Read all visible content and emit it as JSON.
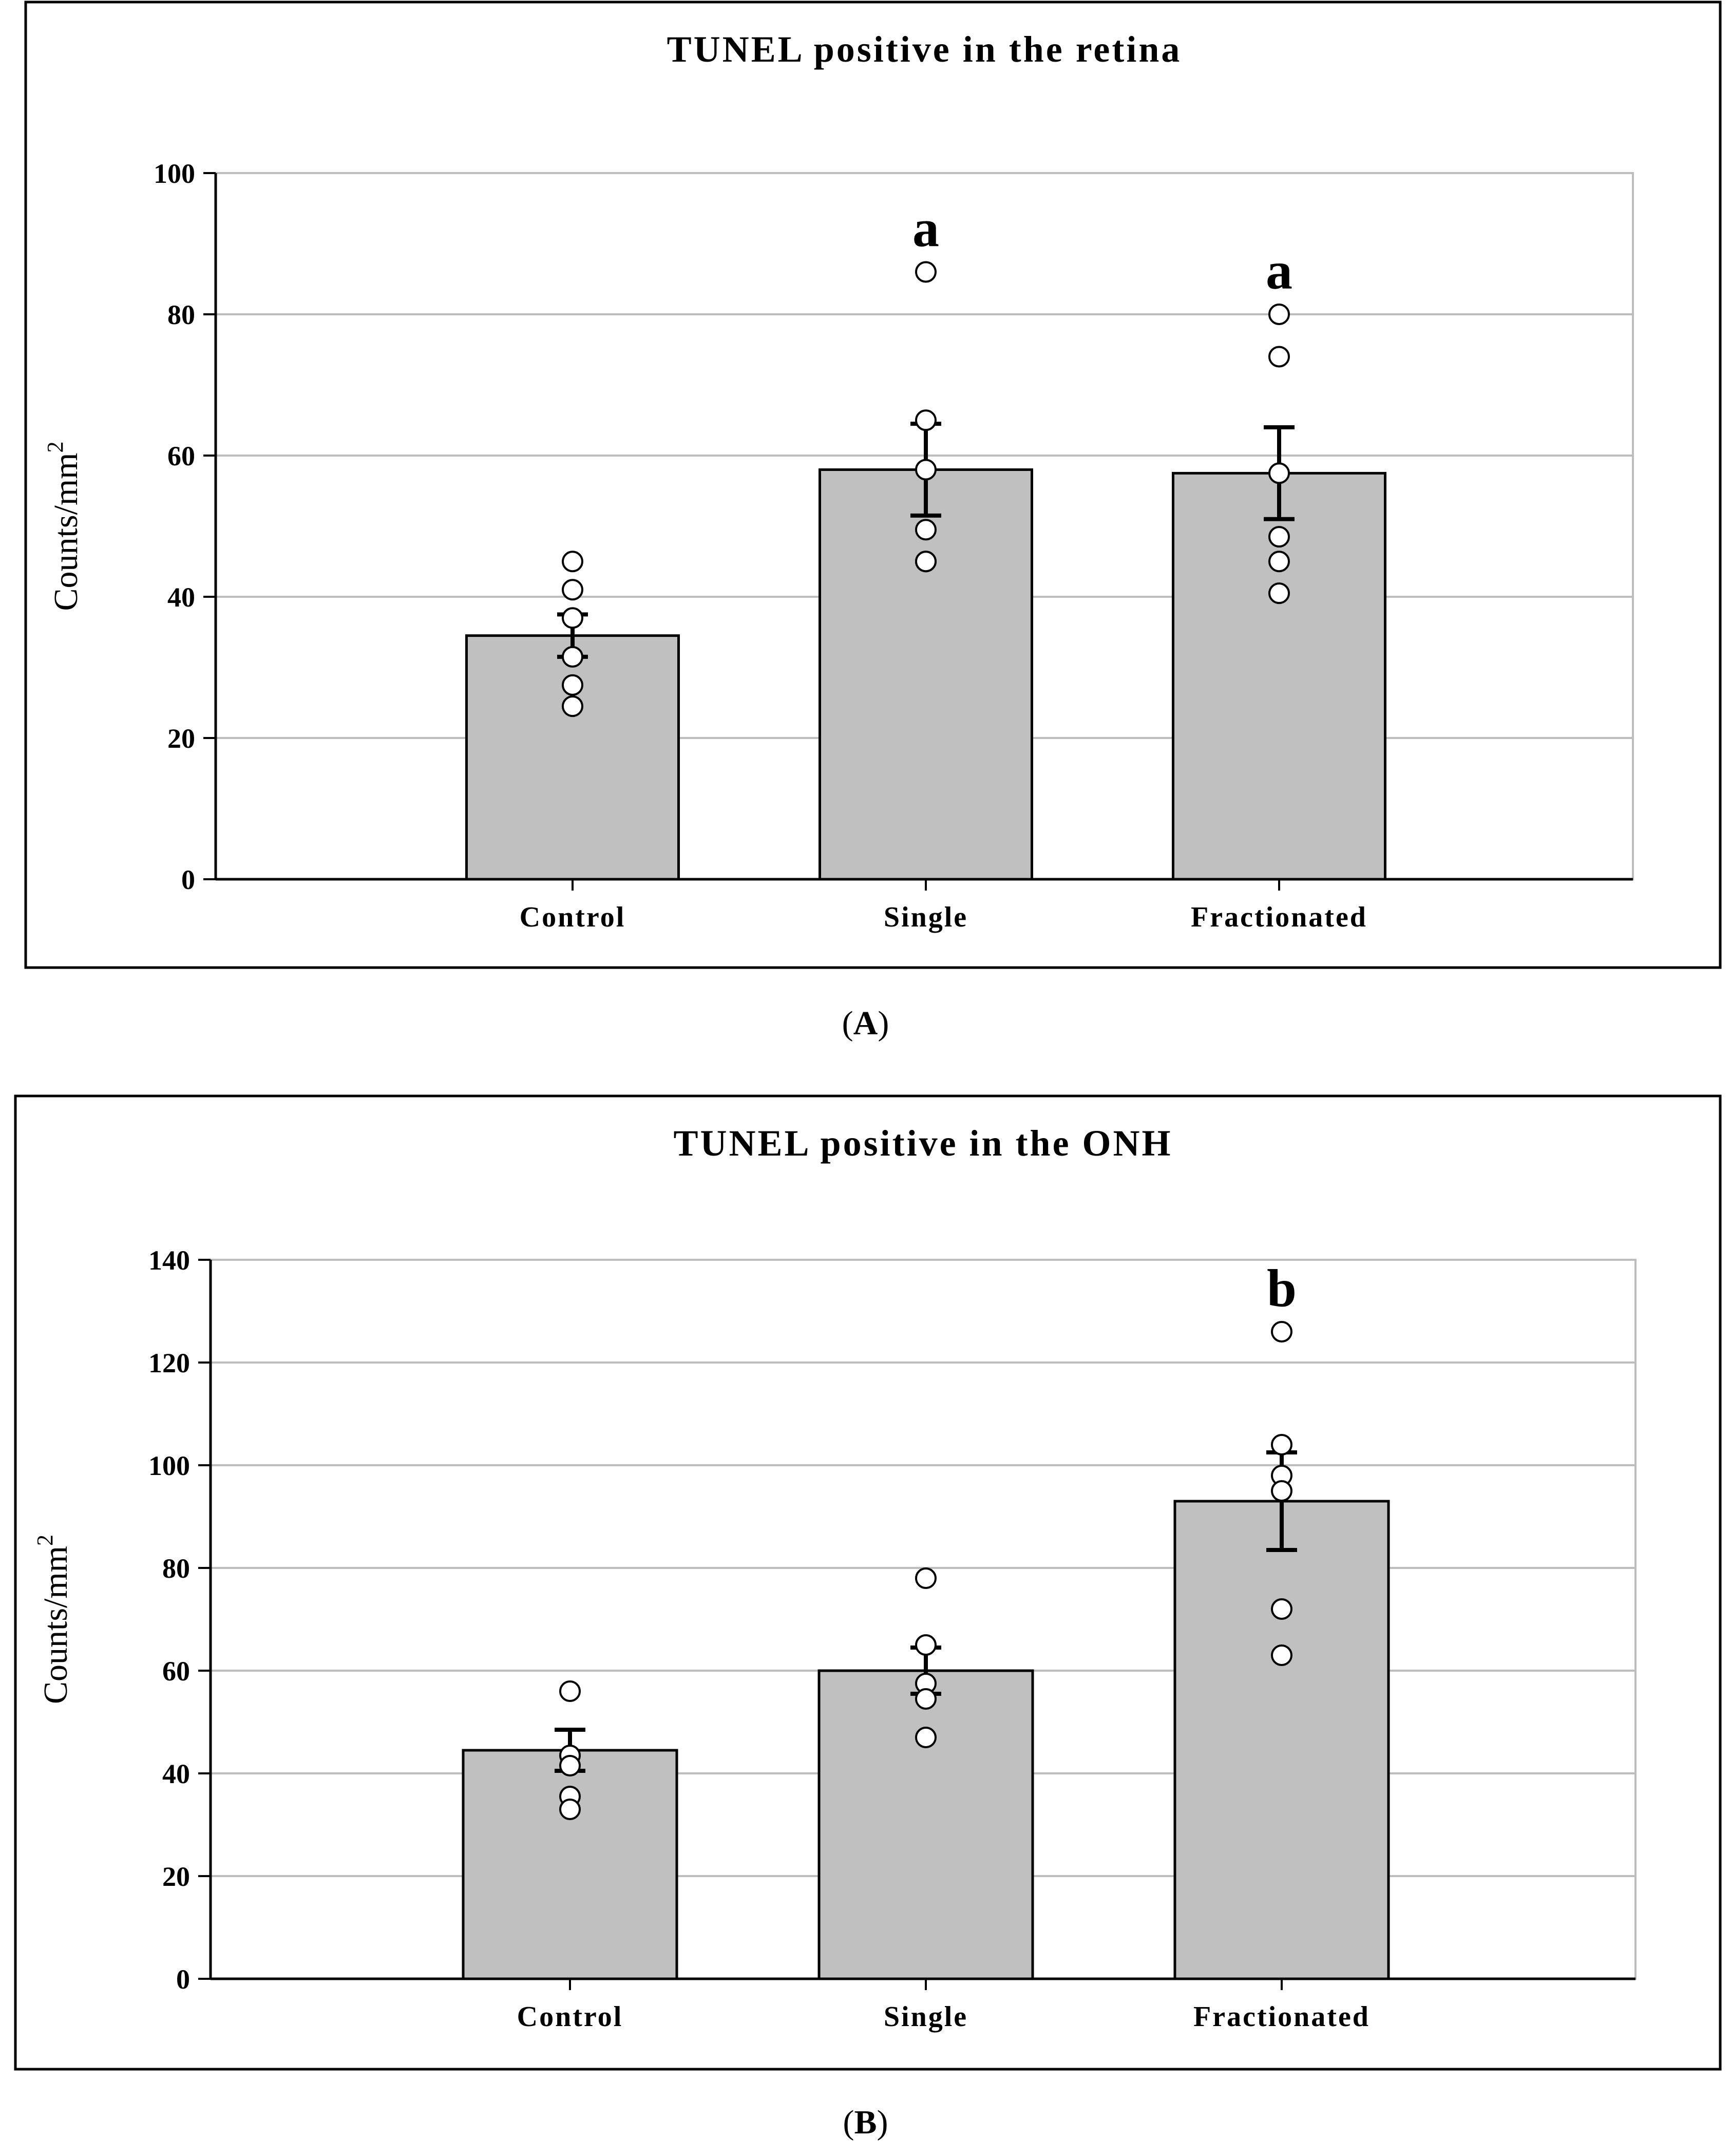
{
  "chart_data": [
    {
      "type": "bar",
      "panel_label": "A",
      "title": "TUNEL positive in the retina",
      "ylabel": "Counts/mm",
      "ylabel_sup": "2",
      "xlabel": "",
      "ylim": [
        0,
        100
      ],
      "yticks": [
        0,
        20,
        40,
        60,
        80,
        100
      ],
      "grid": true,
      "categories": [
        "Control",
        "Single",
        "Fractionated"
      ],
      "values": [
        34.5,
        58.0,
        57.5
      ],
      "errors": [
        3.0,
        6.5,
        6.5
      ],
      "points": [
        [
          45,
          41,
          37,
          31.5,
          27.5,
          24.5
        ],
        [
          86,
          65,
          58,
          49.5,
          45,
          45
        ],
        [
          80,
          74,
          57.5,
          48.5,
          45,
          40.5
        ]
      ],
      "annotations": [
        "",
        "a",
        "a"
      ],
      "bar_color": "#c0c0c0"
    },
    {
      "type": "bar",
      "panel_label": "B",
      "title": "TUNEL positive in the ONH",
      "ylabel": "Counts/mm",
      "ylabel_sup": "2",
      "xlabel": "",
      "ylim": [
        0,
        140
      ],
      "yticks": [
        0,
        20,
        40,
        60,
        80,
        100,
        120,
        140
      ],
      "grid": true,
      "categories": [
        "Control",
        "Single",
        "Fractionated"
      ],
      "values": [
        44.5,
        60.0,
        93.0
      ],
      "errors": [
        4.0,
        4.5,
        9.5
      ],
      "points": [
        [
          56,
          43.5,
          41.5,
          35.5,
          33
        ],
        [
          78,
          65,
          57.5,
          54.5,
          47
        ],
        [
          126,
          104,
          98,
          95,
          72,
          63
        ]
      ],
      "annotations": [
        "",
        "",
        "b"
      ],
      "bar_color": "#c0c0c0"
    }
  ]
}
